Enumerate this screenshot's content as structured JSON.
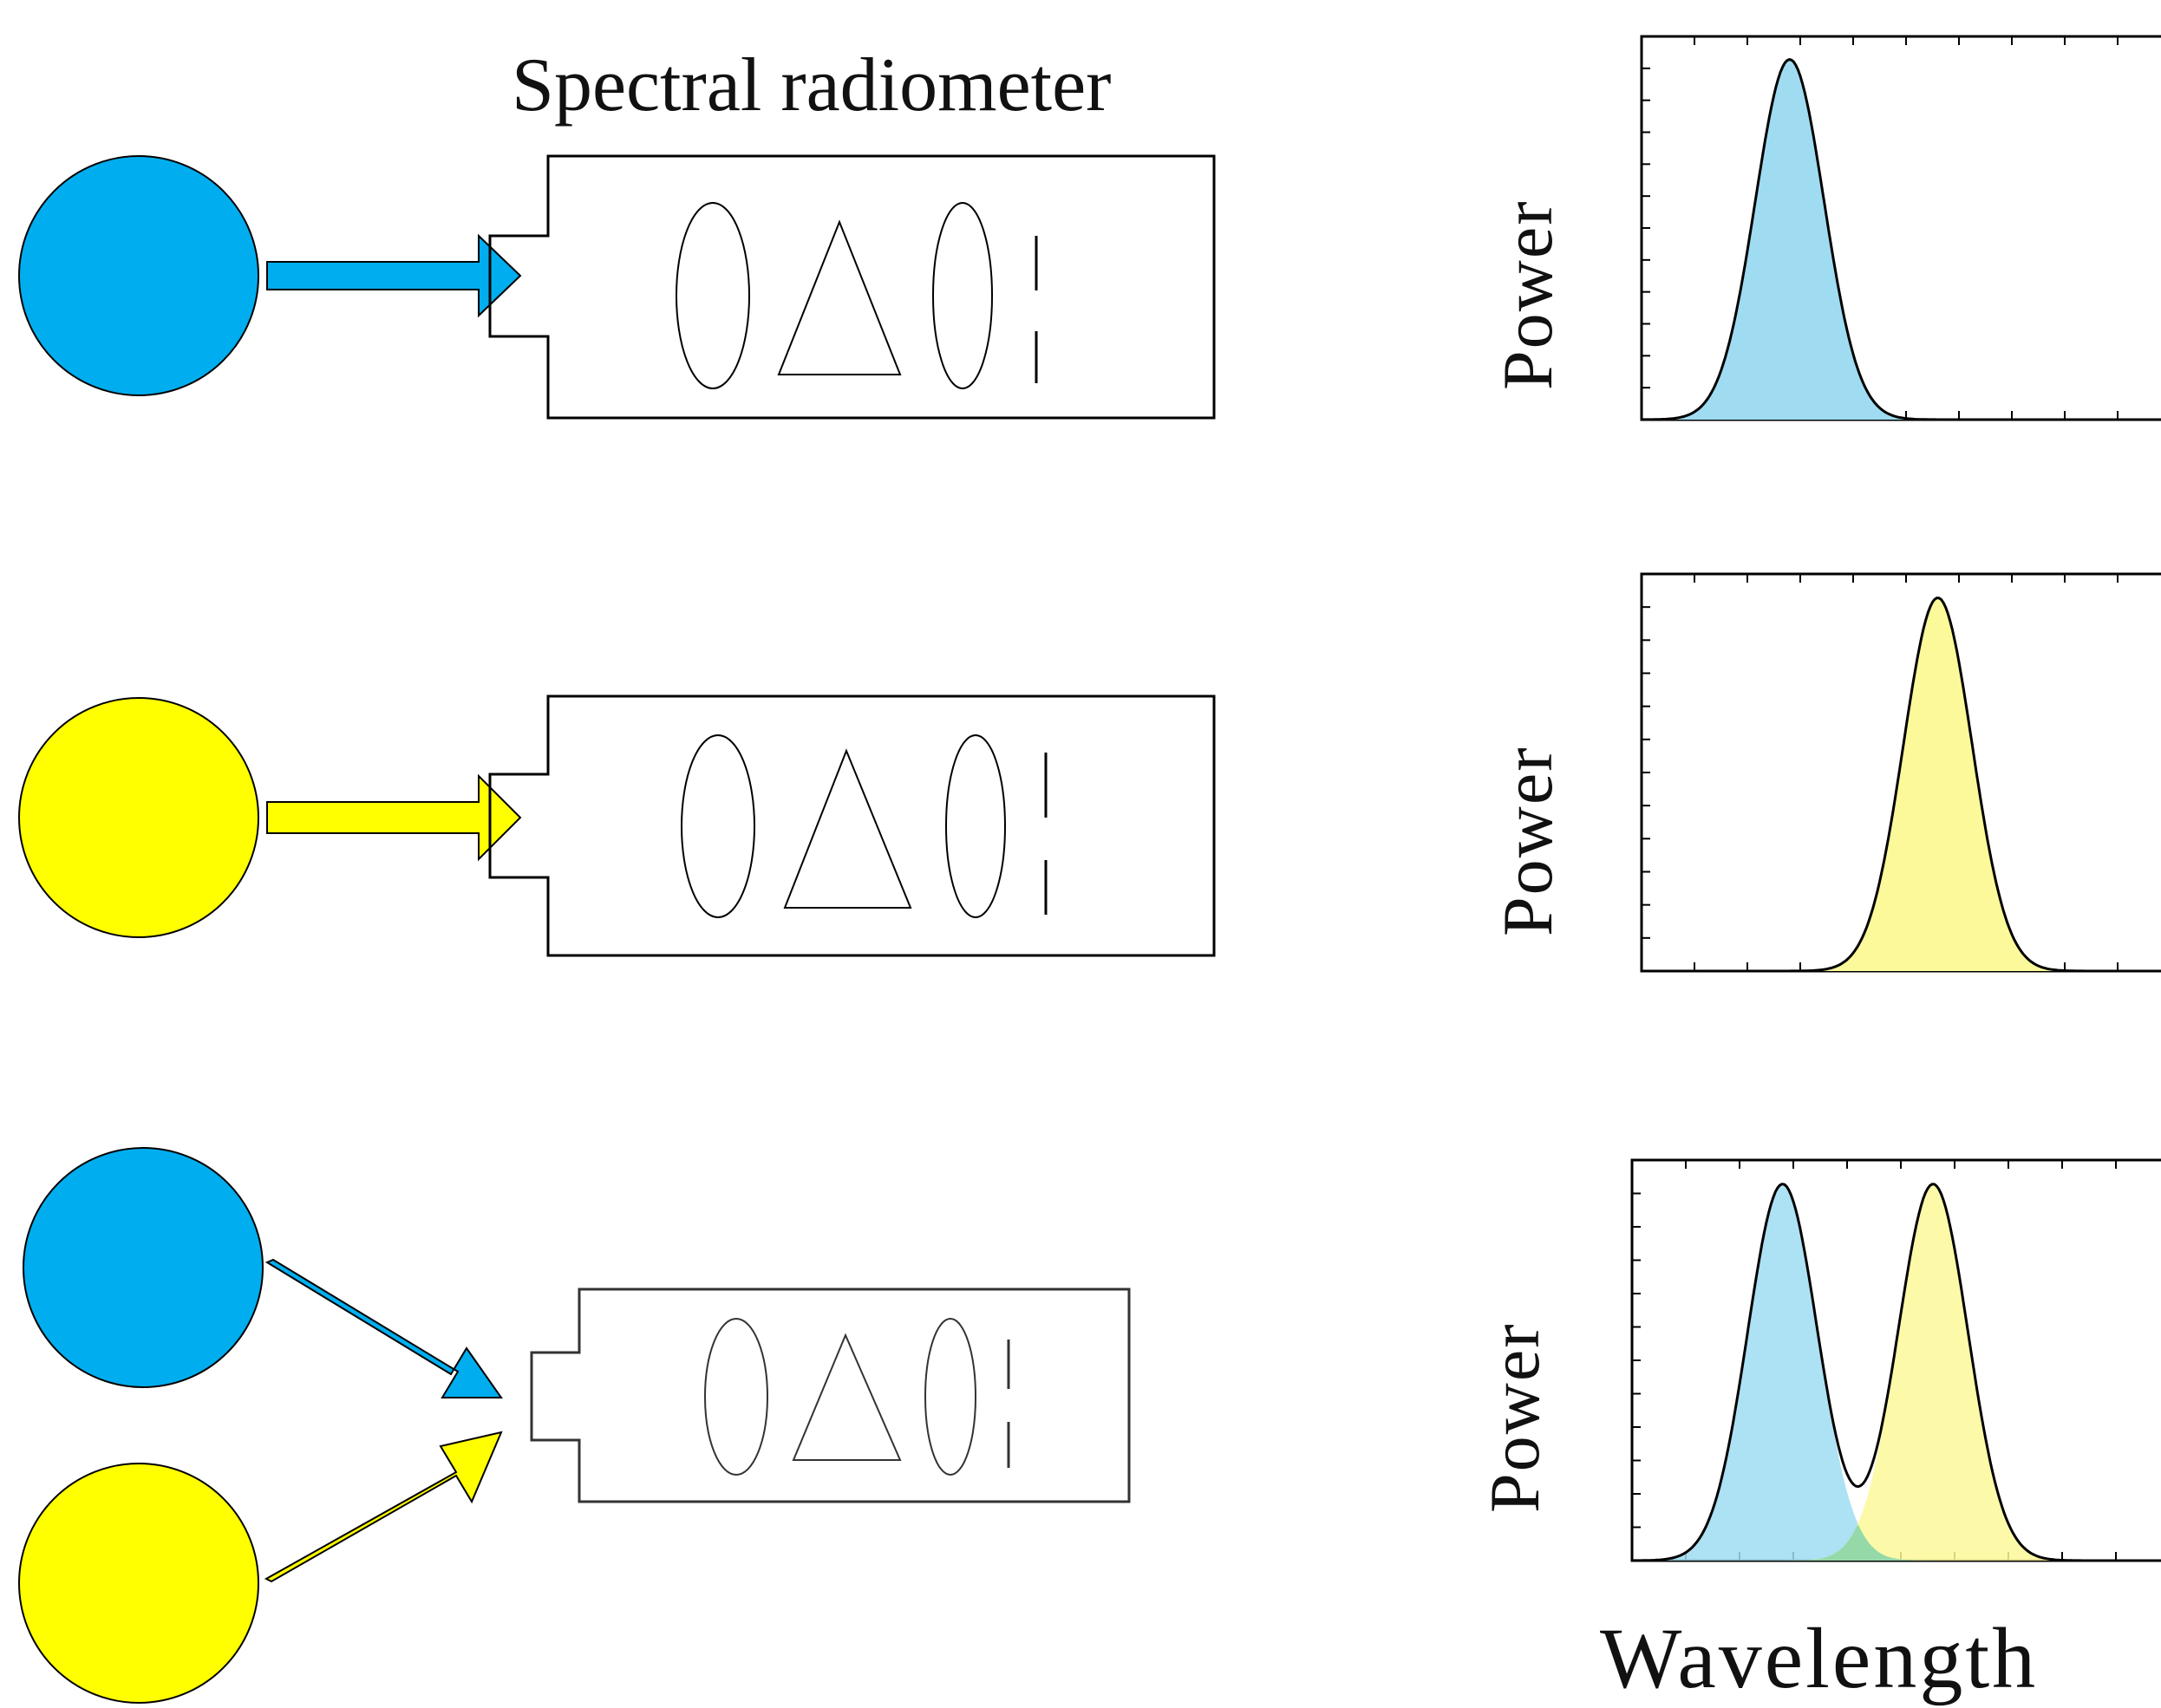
{
  "title": "Spectral radiometer",
  "colors": {
    "blue": "#00AEEF",
    "yellow": "#FFFF00",
    "blue_fill": "#9FDCF2",
    "yellow_fill": "#FBF99A",
    "overlap_fill": "#96D9A8"
  },
  "plots": [
    {
      "ylabel": "Power",
      "curve_color": "blue",
      "peaks": [
        {
          "center": 0.28,
          "height": 1.0
        }
      ]
    },
    {
      "ylabel": "Power",
      "curve_color": "yellow",
      "peaks": [
        {
          "center": 0.56,
          "height": 1.0
        }
      ]
    },
    {
      "ylabel": "Power",
      "curve_color": "both",
      "peaks": [
        {
          "center": 0.28,
          "height": 1.0
        },
        {
          "center": 0.56,
          "height": 1.0
        }
      ]
    }
  ],
  "xlabel": "Wavelength"
}
